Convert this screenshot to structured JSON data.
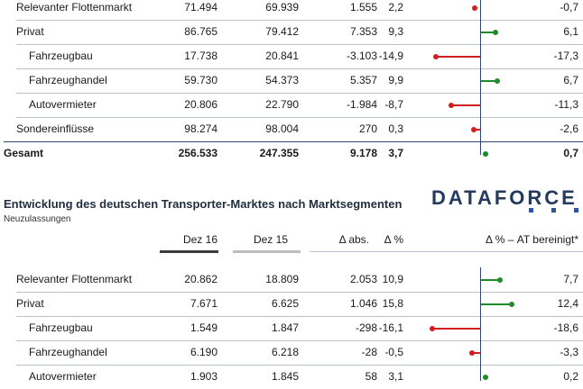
{
  "colors": {
    "positive": "#1e8c2a",
    "negative": "#d01f1f",
    "axis": "#2f4a6b",
    "brand": "#233a5e"
  },
  "table1": {
    "rows": [
      {
        "label": "Relevanter Flottenmarkt",
        "v1": "71.494",
        "v2": "69.939",
        "v3": "1.555",
        "v4": "2,2",
        "v5": "-0,7",
        "delta": -0.7
      },
      {
        "label": "Privat",
        "v1": "86.765",
        "v2": "79.412",
        "v3": "7.353",
        "v4": "9,3",
        "v5": "6,1",
        "delta": 6.1
      },
      {
        "label": "Fahrzeugbau",
        "v1": "17.738",
        "v2": "20.841",
        "v3": "-3.103",
        "v4": "-14,9",
        "v5": "-17,3",
        "delta": -17.3
      },
      {
        "label": "Fahrzeughandel",
        "v1": "59.730",
        "v2": "54.373",
        "v3": "5.357",
        "v4": "9,9",
        "v5": "6,7",
        "delta": 6.7
      },
      {
        "label": "Autovermieter",
        "v1": "20.806",
        "v2": "22.790",
        "v3": "-1.984",
        "v4": "-8,7",
        "v5": "-11,3",
        "delta": -11.3
      },
      {
        "label": "Sondereinflüsse",
        "v1": "98.274",
        "v2": "98.004",
        "v3": "270",
        "v4": "0,3",
        "v5": "-2,6",
        "delta": -2.6
      },
      {
        "label": "Gesamt",
        "v1": "256.533",
        "v2": "247.355",
        "v3": "9.178",
        "v4": "3,7",
        "v5": "0,7",
        "delta": 0.7
      }
    ]
  },
  "section2": {
    "title": "Entwicklung des deutschen Transporter-Marktes nach Marktsegmenten",
    "subtitle": "Neuzulassungen",
    "logo": "DATAFORCE",
    "headers": {
      "h1": "Dez 16",
      "h2": "Dez 15",
      "h3": "Δ abs.",
      "h4": "Δ %",
      "h5": "Δ % – AT bereinigt*"
    }
  },
  "table2": {
    "rows": [
      {
        "label": "Relevanter Flottenmarkt",
        "v1": "20.862",
        "v2": "18.809",
        "v3": "2.053",
        "v4": "10,9",
        "v5": "7,7",
        "delta": 7.7
      },
      {
        "label": "Privat",
        "v1": "7.671",
        "v2": "6.625",
        "v3": "1.046",
        "v4": "15,8",
        "v5": "12,4",
        "delta": 12.4
      },
      {
        "label": "Fahrzeugbau",
        "v1": "1.549",
        "v2": "1.847",
        "v3": "-298",
        "v4": "-16,1",
        "v5": "-18,6",
        "delta": -18.6
      },
      {
        "label": "Fahrzeughandel",
        "v1": "6.190",
        "v2": "6.218",
        "v3": "-28",
        "v4": "-0,5",
        "v5": "-3,3",
        "delta": -3.3
      },
      {
        "label": "Autovermieter",
        "v1": "1.903",
        "v2": "1.845",
        "v3": "58",
        "v4": "3,1",
        "v5": "0,2",
        "delta": 0.2
      }
    ]
  }
}
